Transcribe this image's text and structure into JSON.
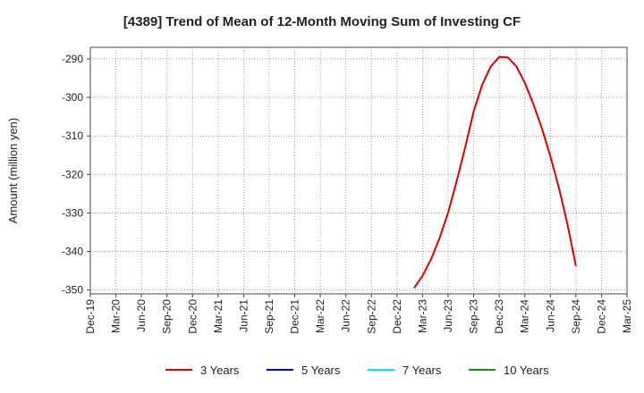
{
  "chart_data": {
    "type": "line",
    "title": "[4389]  Trend of Mean of 12-Month Moving Sum of Investing CF",
    "ylabel": "Amount (million yen)",
    "xlabel": "",
    "ylim": [
      -351,
      -287
    ],
    "yticks": [
      -290,
      -300,
      -310,
      -320,
      -330,
      -340,
      -350
    ],
    "xticks": [
      "Dec-19",
      "Mar-20",
      "Jun-20",
      "Sep-20",
      "Dec-20",
      "Mar-21",
      "Jun-21",
      "Sep-21",
      "Dec-21",
      "Mar-22",
      "Jun-22",
      "Sep-22",
      "Dec-22",
      "Mar-23",
      "Jun-23",
      "Sep-23",
      "Dec-23",
      "Mar-24",
      "Jun-24",
      "Sep-24",
      "Dec-24",
      "Mar-25"
    ],
    "grid": true,
    "legend_position": "bottom",
    "series": [
      {
        "name": "3 Years",
        "color": "#dd0000",
        "x": [
          "Feb-23",
          "Mar-23",
          "Apr-23",
          "May-23",
          "Jun-23",
          "Jul-23",
          "Aug-23",
          "Sep-23",
          "Oct-23",
          "Nov-23",
          "Dec-23",
          "Jan-24",
          "Feb-24",
          "Mar-24",
          "Apr-24",
          "May-24",
          "Jun-24",
          "Jul-24",
          "Aug-24",
          "Sep-24"
        ],
        "values": [
          -349.5,
          -346.3,
          -342.0,
          -336.5,
          -329.9,
          -321.8,
          -313.0,
          -303.6,
          -296.7,
          -292.0,
          -289.5,
          -289.6,
          -291.9,
          -296.2,
          -301.7,
          -308.0,
          -315.3,
          -323.4,
          -332.8,
          -343.8
        ]
      },
      {
        "name": "5 Years",
        "color": "#0000cc",
        "x": [],
        "values": []
      },
      {
        "name": "7 Years",
        "color": "#00e5ee",
        "x": [],
        "values": []
      },
      {
        "name": "10 Years",
        "color": "#228b22",
        "x": [],
        "values": []
      }
    ]
  }
}
